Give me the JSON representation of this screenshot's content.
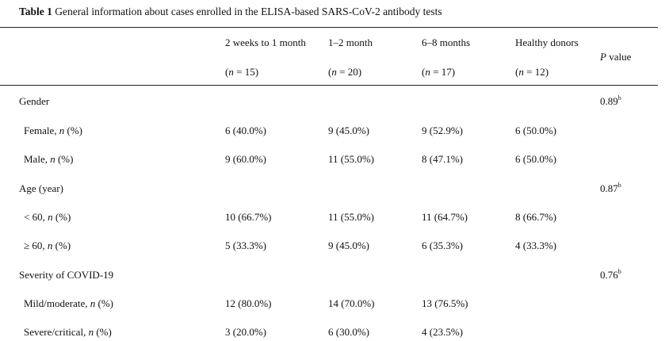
{
  "caption": {
    "label": "Table 1",
    "text": "General information about cases enrolled in the ELISA-based SARS-CoV-2 antibody tests"
  },
  "header": {
    "groups": [
      {
        "name": "2 weeks to 1 month",
        "n": "15"
      },
      {
        "name": "1–2 month",
        "n": "20"
      },
      {
        "name": "6–8 months",
        "n": "17"
      },
      {
        "name": "Healthy donors",
        "n": "12"
      }
    ],
    "p_label": "value",
    "p_symbol": "P"
  },
  "sections": [
    {
      "title": "Gender",
      "p": "0.89",
      "p_sup": "b",
      "rows": [
        {
          "label": "Female,",
          "values": [
            "6 (40.0%)",
            "9 (45.0%)",
            "9 (52.9%)",
            "6 (50.0%)"
          ]
        },
        {
          "label": "Male,",
          "values": [
            "9 (60.0%)",
            "11 (55.0%)",
            "8 (47.1%)",
            "6 (50.0%)"
          ]
        }
      ]
    },
    {
      "title": "Age (year)",
      "p": "0.87",
      "p_sup": "b",
      "rows": [
        {
          "label": "< 60,",
          "values": [
            "10 (66.7%)",
            "11 (55.0%)",
            "11 (64.7%)",
            "8 (66.7%)"
          ]
        },
        {
          "label": "≥ 60,",
          "values": [
            "5 (33.3%)",
            "9 (45.0%)",
            "6 (35.3%)",
            "4 (33.3%)"
          ]
        }
      ]
    },
    {
      "title": "Severity of COVID-19",
      "p": "0.76",
      "p_sup": "b",
      "rows": [
        {
          "label": "Mild/moderate,",
          "values": [
            "12 (80.0%)",
            "14 (70.0%)",
            "13 (76.5%)",
            ""
          ]
        },
        {
          "label": "Severe/critical,",
          "values": [
            "3 (20.0%)",
            "6 (30.0%)",
            "4 (23.5%)",
            ""
          ]
        }
      ]
    }
  ],
  "row_unit": {
    "n": "n",
    "pct": "(%)"
  }
}
